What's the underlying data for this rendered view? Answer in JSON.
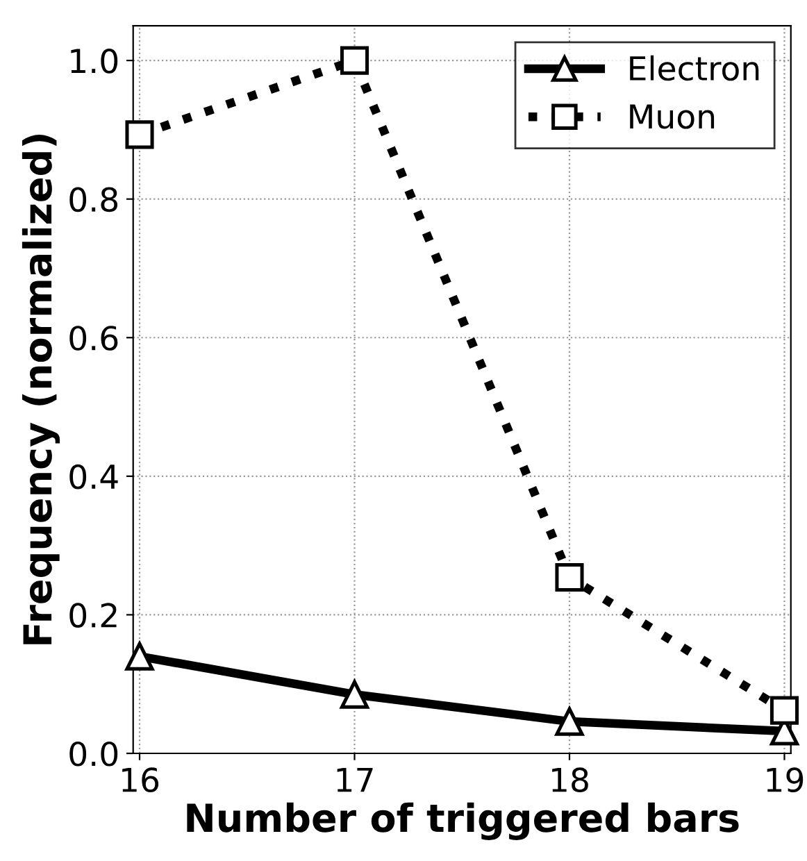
{
  "chart_data": {
    "type": "line",
    "xlabel": "Number of triggered bars",
    "ylabel": "Frequency (normalized)",
    "x": [
      16,
      17,
      18,
      19
    ],
    "series": [
      {
        "name": "Electron",
        "color": "#000000",
        "values": [
          0.14,
          0.085,
          0.046,
          0.032
        ],
        "marker": "triangle",
        "line_style": "solid"
      },
      {
        "name": "Muon",
        "color": "#000000",
        "values": [
          0.893,
          1.0,
          0.254,
          0.062
        ],
        "marker": "square",
        "line_style": "dotted"
      }
    ],
    "xlim": [
      15.97,
      19.03
    ],
    "ylim": [
      0.0,
      1.05
    ],
    "xticks": [
      16,
      17,
      18,
      19
    ],
    "yticks": [
      {
        "value": 0,
        "label": "0.0"
      },
      0.2,
      0.4,
      0.6,
      0.8,
      {
        "value": 1,
        "label": "1.0"
      }
    ],
    "grid": true,
    "legend": "top right"
  }
}
